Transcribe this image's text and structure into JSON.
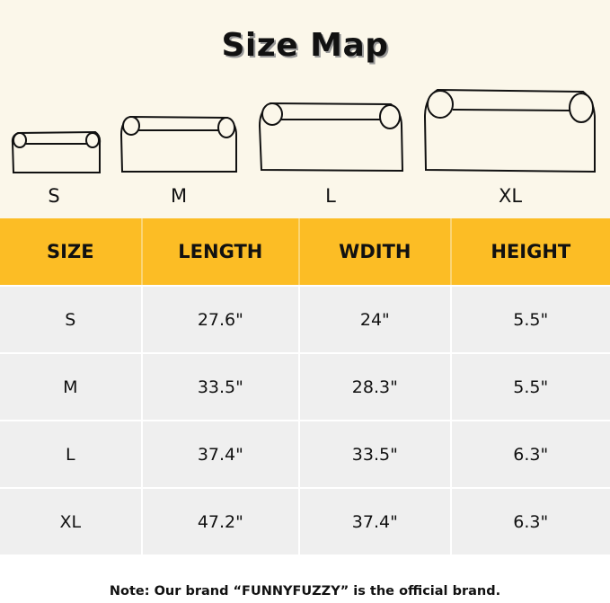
{
  "title": "Size Map",
  "sizes": [
    "S",
    "M",
    "L",
    "XL"
  ],
  "table": {
    "headers": [
      "SIZE",
      "LENGTH",
      "WDITH",
      "HEIGHT"
    ],
    "rows": [
      [
        "S",
        "27.6\"",
        "24\"",
        "5.5\""
      ],
      [
        "M",
        "33.5\"",
        "28.3\"",
        "5.5\""
      ],
      [
        "L",
        "37.4\"",
        "33.5\"",
        "6.3\""
      ],
      [
        "XL",
        "47.2\"",
        "37.4\"",
        "6.3\""
      ]
    ]
  },
  "note": "Note: Our brand “FUNNYFUZZY” is the official brand.",
  "colors": {
    "header": "#fcbd25",
    "background": "#fbf7ea",
    "row": "#efefef"
  }
}
